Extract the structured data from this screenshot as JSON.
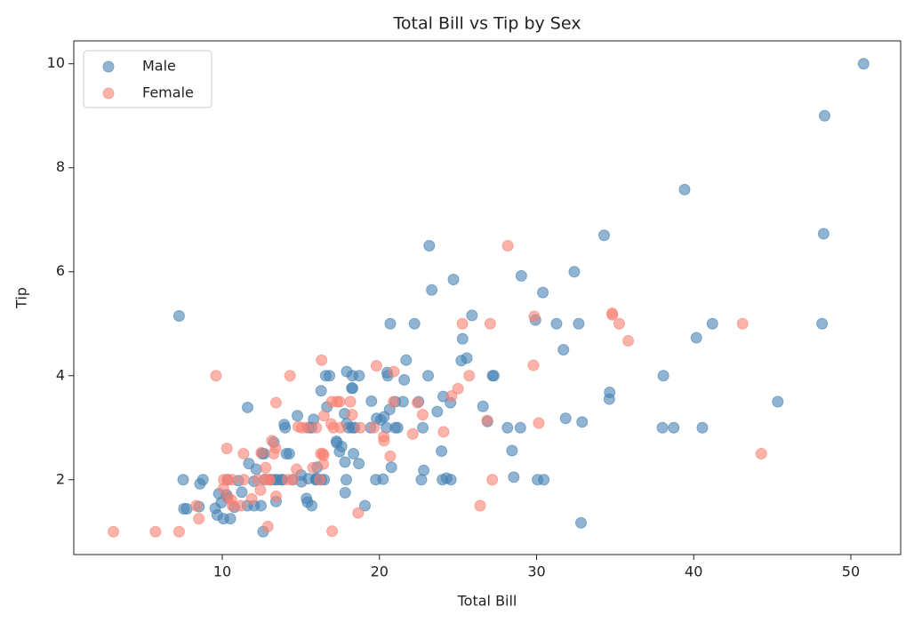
{
  "chart_data": {
    "type": "scatter",
    "title": "Total Bill vs Tip by Sex",
    "x_label": "Total Bill",
    "y_label": "Tip",
    "xlim": [
      0.55,
      53.17
    ],
    "ylim": [
      0.56,
      10.44
    ],
    "xticks": [
      10,
      20,
      30,
      40,
      50
    ],
    "yticks": [
      2,
      4,
      6,
      8,
      10
    ],
    "grid": false,
    "legend": "upper-left",
    "opacity": 0.6,
    "series": [
      {
        "name": "Male",
        "color": "#4682b4",
        "x": [
          10.34,
          21.01,
          23.68,
          25.29,
          8.77,
          26.88,
          15.04,
          14.78,
          10.27,
          15.42,
          18.43,
          21.58,
          16.29,
          20.65,
          17.92,
          39.42,
          19.82,
          17.81,
          13.37,
          12.69,
          21.7,
          9.55,
          18.35,
          17.78,
          24.06,
          16.31,
          18.69,
          31.27,
          16.04,
          17.46,
          13.94,
          9.68,
          30.4,
          18.29,
          22.23,
          32.4,
          28.55,
          18.04,
          12.54,
          9.94,
          25.56,
          19.49,
          38.01,
          11.24,
          48.27,
          20.29,
          13.81,
          11.02,
          18.29,
          17.59,
          20.08,
          20.23,
          15.01,
          12.02,
          10.51,
          17.92,
          27.2,
          22.76,
          17.29,
          19.44,
          16.66,
          32.68,
          15.98,
          13.03,
          18.28,
          24.71,
          21.16,
          28.97,
          22.49,
          40.17,
          27.28,
          12.03,
          21.01,
          12.46,
          15.36,
          20.49,
          25.21,
          18.24,
          14,
          38.07,
          23.95,
          29.93,
          11.69,
          14.26,
          15.95,
          8.52,
          22.82,
          19.08,
          16,
          34.3,
          41.19,
          9.78,
          7.51,
          14.07,
          13.13,
          17.26,
          24.55,
          19.77,
          48.17,
          16.49,
          21.5,
          12.66,
          13.81,
          24.52,
          20.76,
          31.71,
          50.81,
          15.81,
          7.25,
          31.85,
          16.82,
          32.9,
          17.89,
          14.48,
          34.63,
          34.65,
          23.33,
          45.35,
          23.17,
          40.55,
          20.69,
          30.46,
          23.1,
          15.69,
          28.44,
          15.48,
          16.58,
          7.56,
          10.34,
          13.51,
          18.71,
          20.53,
          26.59,
          38.73,
          24.27,
          30.06,
          25.89,
          48.33,
          28.15,
          11.59,
          7.74,
          12.16,
          8.58,
          13.42,
          20.45,
          13.28,
          24.01,
          15.69,
          11.61,
          10.77,
          15.53,
          10.07,
          12.6,
          32.83,
          29.03,
          22.67,
          17.82
        ],
        "values": [
          1.66,
          3.5,
          3.31,
          4.71,
          2,
          3.12,
          1.96,
          3.23,
          1.71,
          1.57,
          3,
          3.92,
          3.71,
          3.35,
          4.08,
          7.58,
          3.18,
          2.34,
          2,
          2,
          4.3,
          1.45,
          2.5,
          3.27,
          3.6,
          2,
          2.31,
          5,
          2.24,
          2.54,
          3.06,
          1.32,
          5.6,
          3,
          5,
          6,
          2.05,
          3,
          2.5,
          1.56,
          4.34,
          3.51,
          3,
          1.76,
          6.73,
          3.21,
          2,
          1.98,
          3.76,
          2.64,
          3.15,
          2.01,
          2.09,
          1.97,
          1.25,
          3.08,
          4,
          3,
          2.71,
          3,
          3.4,
          5,
          2.03,
          2,
          4,
          5.85,
          3,
          3,
          3.5,
          4.73,
          4,
          1.5,
          3,
          1.5,
          1.64,
          4.06,
          4.29,
          3.76,
          3,
          4,
          2.55,
          5.07,
          2.31,
          2.5,
          2,
          1.48,
          2.18,
          1.5,
          2,
          6.7,
          5,
          1.73,
          2,
          2.5,
          2,
          2.74,
          2,
          2,
          5,
          2,
          3.5,
          2.5,
          2,
          3.48,
          2.24,
          4.5,
          10,
          3.16,
          5.15,
          3.18,
          4,
          3.11,
          2,
          2,
          3.55,
          3.68,
          5.65,
          3.5,
          6.5,
          3,
          5,
          2,
          4,
          1.5,
          2.56,
          2.02,
          4,
          1.44,
          2,
          2,
          4,
          4,
          3.41,
          3,
          2.03,
          2,
          5.16,
          9,
          3,
          1.5,
          1.44,
          2.2,
          1.92,
          1.58,
          3,
          2.72,
          2,
          3,
          3.39,
          1.47,
          3,
          1.25,
          1,
          1.17,
          5.92,
          2,
          1.75
        ]
      },
      {
        "name": "Female",
        "color": "#fa8072",
        "x": [
          16.99,
          24.59,
          35.26,
          14.83,
          10.33,
          16.97,
          20.29,
          15.77,
          19.65,
          15.06,
          20.69,
          16.93,
          10.29,
          34.81,
          26.41,
          16.45,
          3.07,
          17.07,
          26.86,
          25.28,
          14.73,
          10.07,
          34.83,
          5.75,
          16.32,
          22.75,
          11.35,
          15.38,
          44.3,
          22.42,
          20.92,
          14.31,
          7.25,
          25.71,
          17.31,
          10.65,
          12.43,
          24.08,
          13.42,
          12.48,
          29.8,
          14.52,
          11.38,
          20.27,
          11.17,
          12.26,
          18.26,
          8.51,
          10.33,
          14.15,
          13.16,
          17.47,
          27.05,
          16.43,
          8.35,
          18.64,
          11.87,
          29.85,
          25,
          13.39,
          16.21,
          17.51,
          10.59,
          10.63,
          9.6,
          20.9,
          18.15,
          19.81,
          43.11,
          13,
          12.74,
          13,
          16.4,
          16.47,
          12.76,
          13.27,
          28.17,
          12.9,
          30.14,
          13.42,
          15.98,
          16.27,
          10.09,
          22.12,
          35.83,
          27.18,
          18.78
        ],
        "values": [
          1.01,
          3.61,
          5,
          3.02,
          1.67,
          3.5,
          2.75,
          2.23,
          3,
          3,
          2.45,
          3.07,
          2.6,
          5.2,
          1.5,
          2.47,
          1,
          3,
          3.14,
          5,
          2.2,
          1.83,
          5.17,
          1,
          4.3,
          3.25,
          2.5,
          3,
          2.5,
          3.48,
          4.08,
          4,
          1,
          4,
          3.5,
          1.5,
          1.8,
          2.92,
          1.68,
          2.52,
          4.2,
          2,
          2,
          2.83,
          1.5,
          2,
          3.25,
          1.25,
          2,
          2,
          2.75,
          3.5,
          5,
          2.3,
          1.5,
          1.36,
          1.63,
          5.14,
          3.75,
          2.61,
          2,
          3,
          1.61,
          2,
          4,
          3.5,
          3.5,
          4.19,
          5,
          2,
          2.01,
          2,
          2.5,
          3.23,
          2.23,
          2.5,
          6.5,
          1.1,
          3.09,
          3.48,
          3,
          2.5,
          2,
          2.88,
          4.67,
          2,
          3
        ]
      }
    ]
  }
}
